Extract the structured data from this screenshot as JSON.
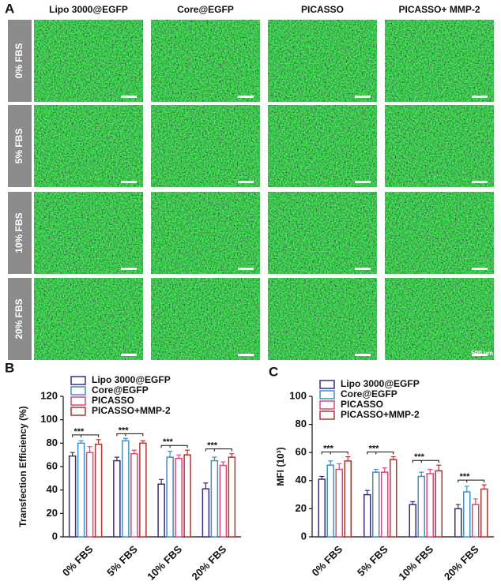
{
  "panel_a": {
    "label": "A",
    "columns": [
      "Lipo 3000@EGFP",
      "Core@EGFP",
      "PICASSO",
      "PICASSO+ MMP-2"
    ],
    "rows": [
      "0% FBS",
      "5% FBS",
      "10% FBS",
      "20% FBS"
    ],
    "scale_bar": "500 μm"
  },
  "chart_data": [
    {
      "type": "bar",
      "panel_label": "B",
      "y_label": "Transfection Efficiency (%)",
      "categories": [
        "0% FBS",
        "5% FBS",
        "10% FBS",
        "20% FBS"
      ],
      "series": [
        {
          "name": "Lipo 3000@EGFP",
          "color": "#3a2d7c",
          "values": [
            69,
            65,
            45,
            41
          ],
          "errors": [
            3,
            3,
            4,
            5
          ]
        },
        {
          "name": "Core@EGFP",
          "color": "#3f8fc4",
          "values": [
            80,
            82,
            68,
            65
          ],
          "errors": [
            2,
            2,
            5,
            3
          ]
        },
        {
          "name": "PICASSO",
          "color": "#e0457b",
          "values": [
            72,
            71,
            67,
            61
          ],
          "errors": [
            5,
            3,
            3,
            3
          ]
        },
        {
          "name": "PICASSO+MMP-2",
          "color": "#b8322e",
          "values": [
            79,
            80,
            70,
            68
          ],
          "errors": [
            4,
            2,
            4,
            3
          ]
        }
      ],
      "significance": [
        "***",
        "***",
        "***",
        "***"
      ],
      "ylim": [
        0,
        120
      ],
      "yticks": [
        0,
        20,
        40,
        60,
        80,
        100,
        120
      ]
    },
    {
      "type": "bar",
      "panel_label": "C",
      "y_label": "MFI (10³)",
      "categories": [
        "0% FBS",
        "5% FBS",
        "10% FBS",
        "20% FBS"
      ],
      "series": [
        {
          "name": "Lipo 3000@EGFP",
          "color": "#3a2d7c",
          "values": [
            41,
            30,
            23,
            20
          ],
          "errors": [
            2,
            3,
            2,
            3
          ]
        },
        {
          "name": "Core@EGFP",
          "color": "#3f8fc4",
          "values": [
            51,
            46,
            43,
            32
          ],
          "errors": [
            3,
            2,
            3,
            4
          ]
        },
        {
          "name": "PICASSO",
          "color": "#e0457b",
          "values": [
            48,
            46,
            45,
            23
          ],
          "errors": [
            4,
            3,
            3,
            4
          ]
        },
        {
          "name": "PICASSO+MMP-2",
          "color": "#b8322e",
          "values": [
            54,
            55,
            47,
            34
          ],
          "errors": [
            3,
            2,
            4,
            3
          ]
        }
      ],
      "significance": [
        "***",
        "***",
        "***",
        "***"
      ],
      "ylim": [
        0,
        100
      ],
      "yticks": [
        0,
        20,
        40,
        60,
        80,
        100
      ]
    }
  ]
}
